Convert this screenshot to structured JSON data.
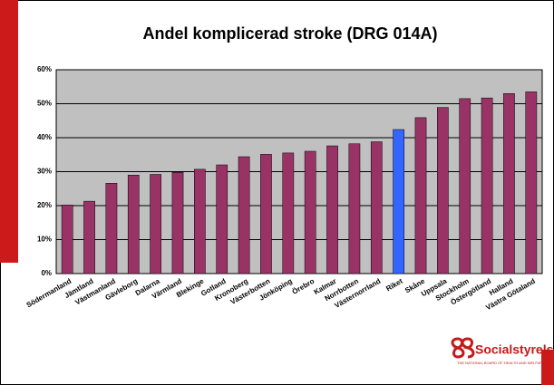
{
  "chart_data": {
    "type": "bar",
    "title": "Andel komplicerad stroke (DRG 014A)",
    "categories": [
      "Södermanland",
      "Jämtland",
      "Västmanland",
      "Gävleborg",
      "Dalarna",
      "Värmland",
      "Blekinge",
      "Gotland",
      "Kronoberg",
      "Västerbotten",
      "Jönköping",
      "Örebro",
      "Kalmar",
      "Norrbotten",
      "Västernorrland",
      "Riket",
      "Skåne",
      "Uppsala",
      "Stockholm",
      "Östergötland",
      "Halland",
      "Västra Götaland"
    ],
    "values": [
      20.2,
      21.3,
      26.6,
      29.0,
      29.2,
      29.8,
      30.7,
      32.0,
      34.4,
      35.1,
      35.5,
      36.0,
      37.6,
      38.2,
      38.8,
      42.4,
      45.9,
      48.9,
      51.5,
      51.7,
      53.0,
      53.5
    ],
    "colors": [
      "#993366",
      "#993366",
      "#993366",
      "#993366",
      "#993366",
      "#993366",
      "#993366",
      "#993366",
      "#993366",
      "#993366",
      "#993366",
      "#993366",
      "#993366",
      "#993366",
      "#993366",
      "#3366ff",
      "#993366",
      "#993366",
      "#993366",
      "#993366",
      "#993366",
      "#993366"
    ],
    "ylim": [
      0,
      60
    ],
    "yticks": [
      {
        "value": 0,
        "label": "0%"
      },
      {
        "value": 10,
        "label": "10%"
      },
      {
        "value": 20,
        "label": "20%"
      },
      {
        "value": 30,
        "label": "30%"
      },
      {
        "value": 40,
        "label": "40%"
      },
      {
        "value": 50,
        "label": "50%"
      },
      {
        "value": 60,
        "label": "60%"
      }
    ],
    "grid": true
  },
  "logo": {
    "name": "Socialstyrelsen",
    "tagline": "THE NATIONAL BOARD OF HEALTH AND WELFARE"
  }
}
